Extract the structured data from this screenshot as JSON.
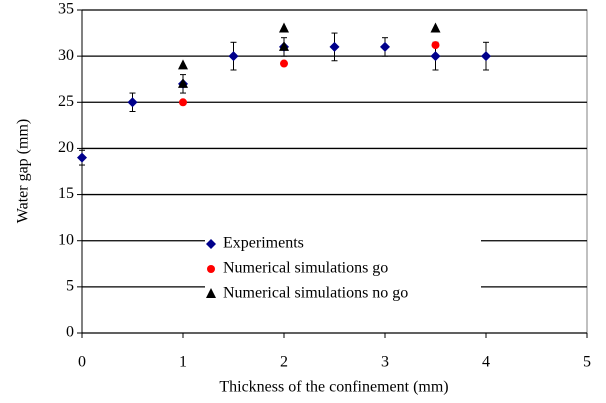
{
  "chart_data": {
    "type": "scatter",
    "x_label": "Thickness of the confinement (mm)",
    "y_label": "Water gap (mm)",
    "xlim": [
      0,
      5
    ],
    "xticks": [
      0,
      1,
      2,
      3,
      4,
      5
    ],
    "ylim": [
      0,
      35
    ],
    "yticks": [
      0,
      5,
      10,
      15,
      20,
      25,
      30,
      35
    ],
    "grid": true,
    "series": [
      {
        "name": "Experiments",
        "color": "#00008b",
        "marker": "diamond",
        "x": [
          0,
          0.5,
          1,
          1.5,
          2,
          2.5,
          3,
          3.5,
          4
        ],
        "values": [
          19,
          25,
          27,
          30,
          31,
          31,
          31,
          30,
          30
        ],
        "errors": [
          0.8,
          1,
          1,
          1.5,
          1,
          1.5,
          1,
          1.5,
          1.5
        ]
      },
      {
        "name": "Numerical simulations go",
        "color": "#ff0000",
        "marker": "circle",
        "x": [
          1,
          2,
          3.5
        ],
        "values": [
          25,
          29.2,
          31.2
        ]
      },
      {
        "name": "Numerical simulations no go",
        "color": "#000000",
        "marker": "triangle",
        "x": [
          1,
          1,
          2,
          2,
          3.5
        ],
        "values": [
          29,
          27,
          33,
          31,
          33
        ]
      }
    ]
  }
}
